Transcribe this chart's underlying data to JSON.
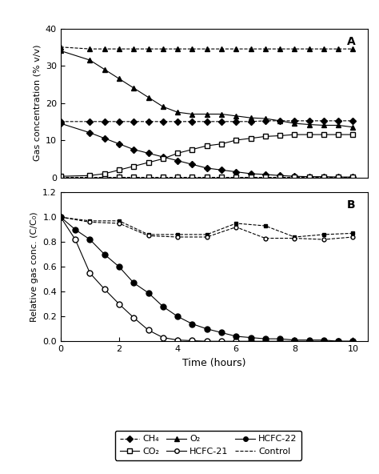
{
  "panel_A": {
    "time": [
      0,
      1,
      1.5,
      2,
      2.5,
      3,
      3.5,
      4,
      4.5,
      5,
      5.5,
      6,
      6.5,
      7,
      7.5,
      8,
      8.5,
      9,
      9.5,
      10
    ],
    "CH4_solid": [
      14.5,
      12.0,
      10.5,
      9.0,
      7.5,
      6.5,
      5.5,
      4.5,
      3.5,
      2.5,
      2.0,
      1.5,
      1.0,
      0.8,
      0.5,
      0.3,
      0.2,
      0.2,
      0.1,
      0.1
    ],
    "CH4_control": [
      15.0,
      15.0,
      15.0,
      15.0,
      15.0,
      15.0,
      15.0,
      15.0,
      15.0,
      15.0,
      15.0,
      15.0,
      15.0,
      15.2,
      15.2,
      15.2,
      15.2,
      15.2,
      15.2,
      15.2
    ],
    "CO2_solid": [
      0.3,
      0.5,
      1.0,
      2.0,
      3.0,
      4.0,
      5.0,
      6.5,
      7.5,
      8.5,
      9.0,
      10.0,
      10.5,
      11.0,
      11.2,
      11.5,
      11.5,
      11.5,
      11.5,
      11.5
    ],
    "CO2_control": [
      0.2,
      0.2,
      0.2,
      0.2,
      0.2,
      0.2,
      0.2,
      0.2,
      0.2,
      0.2,
      0.2,
      0.2,
      0.2,
      0.2,
      0.2,
      0.2,
      0.2,
      0.2,
      0.2,
      0.2
    ],
    "O2_solid": [
      34.0,
      31.5,
      29.0,
      26.5,
      24.0,
      21.5,
      19.0,
      17.5,
      17.0,
      17.0,
      17.0,
      16.5,
      16.0,
      15.8,
      15.2,
      14.5,
      14.2,
      14.0,
      14.0,
      13.5
    ],
    "O2_control": [
      35.0,
      34.5,
      34.5,
      34.5,
      34.5,
      34.5,
      34.5,
      34.5,
      34.5,
      34.5,
      34.5,
      34.5,
      34.5,
      34.5,
      34.5,
      34.5,
      34.5,
      34.5,
      34.5,
      34.5
    ],
    "ylabel": "Gas concentration (% v/v)",
    "ylim": [
      0,
      40
    ],
    "yticks": [
      0,
      10,
      20,
      30,
      40
    ],
    "label": "A"
  },
  "panel_B": {
    "time_hcfc21": [
      0,
      0.5,
      1,
      1.5,
      2,
      2.5,
      3,
      3.5,
      4,
      4.5,
      5,
      5.5,
      6,
      6.5,
      7,
      7.5,
      8,
      8.5,
      9,
      9.5,
      10
    ],
    "HCFC21": [
      1.0,
      0.82,
      0.55,
      0.42,
      0.3,
      0.19,
      0.09,
      0.03,
      0.01,
      0.005,
      0.0,
      0.0,
      0.0,
      0.0,
      0.0,
      0.0,
      0.0,
      0.0,
      0.0,
      0.0,
      0.0
    ],
    "time_hcfc22": [
      0,
      0.5,
      1,
      1.5,
      2,
      2.5,
      3,
      3.5,
      4,
      4.5,
      5,
      5.5,
      6,
      6.5,
      7,
      7.5,
      8,
      8.5,
      9,
      9.5,
      10
    ],
    "HCFC22": [
      1.0,
      0.9,
      0.82,
      0.7,
      0.6,
      0.47,
      0.39,
      0.28,
      0.2,
      0.14,
      0.1,
      0.07,
      0.04,
      0.03,
      0.02,
      0.02,
      0.01,
      0.01,
      0.01,
      0.0,
      0.0
    ],
    "time_control": [
      0,
      1,
      2,
      3,
      4,
      5,
      6,
      7,
      8,
      9,
      10
    ],
    "Control1": [
      1.0,
      0.97,
      0.97,
      0.86,
      0.86,
      0.86,
      0.95,
      0.93,
      0.84,
      0.86,
      0.87
    ],
    "Control2": [
      1.0,
      0.96,
      0.95,
      0.85,
      0.84,
      0.84,
      0.92,
      0.83,
      0.83,
      0.82,
      0.84
    ],
    "ylabel": "Relative gas conc. (C/C₀)",
    "xlabel": "Time (hours)",
    "ylim": [
      0,
      1.2
    ],
    "yticks": [
      0,
      0.2,
      0.4,
      0.6,
      0.8,
      1.0,
      1.2
    ],
    "label": "B"
  },
  "legend": {
    "CH4_label": "CH₄",
    "CO2_label": "CO₂",
    "O2_label": "O₂",
    "HCFC21_label": "HCFC-21",
    "HCFC22_label": "HCFC-22",
    "Control_label": "Control"
  },
  "xlim": [
    0,
    10.5
  ],
  "xticks": [
    0,
    2,
    4,
    6,
    8,
    10
  ]
}
